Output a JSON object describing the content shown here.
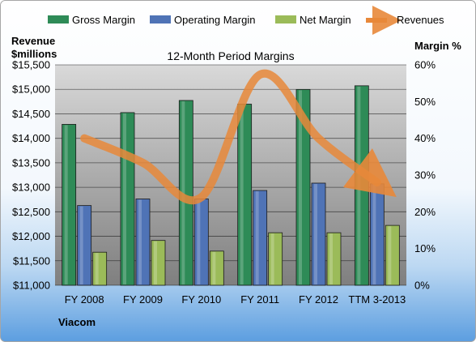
{
  "chart_data": {
    "type": "bar",
    "title": "12-Month Period Margins",
    "company": "Viacom",
    "y_left_label_line1": "Revenue",
    "y_left_label_line2": "$millions",
    "y_right_label": "Margin %",
    "categories": [
      "FY 2008",
      "FY 2009",
      "FY 2010",
      "FY 2011",
      "FY 2012",
      "TTM 3-2013"
    ],
    "y_left_ticks": [
      "$11,000",
      "$11,500",
      "$12,000",
      "$12,500",
      "$13,000",
      "$13,500",
      "$14,000",
      "$14,500",
      "$15,000",
      "$15,500"
    ],
    "y_right_ticks": [
      "0%",
      "10%",
      "20%",
      "30%",
      "40%",
      "50%",
      "60%"
    ],
    "ylim_left": [
      11000,
      15500
    ],
    "ylim_right": [
      0,
      60
    ],
    "grid": true,
    "legend_position": "top",
    "series": [
      {
        "name": "Gross Margin",
        "kind": "bar",
        "axis": "right",
        "color": "#2e8b57",
        "values": [
          43.8,
          47.0,
          50.3,
          49.3,
          53.3,
          54.3
        ]
      },
      {
        "name": "Operating Margin",
        "kind": "bar",
        "axis": "right",
        "color": "#4f73b6",
        "values": [
          21.7,
          23.5,
          23.5,
          25.8,
          27.8,
          27.6
        ]
      },
      {
        "name": "Net Margin",
        "kind": "bar",
        "axis": "right",
        "color": "#9bbb59",
        "values": [
          9.0,
          12.2,
          9.3,
          14.3,
          14.3,
          16.3
        ]
      },
      {
        "name": "Revenues",
        "kind": "line",
        "axis": "left",
        "color": "#e8883a",
        "values": [
          14000,
          13500,
          12800,
          15300,
          14000,
          13100
        ]
      }
    ]
  }
}
